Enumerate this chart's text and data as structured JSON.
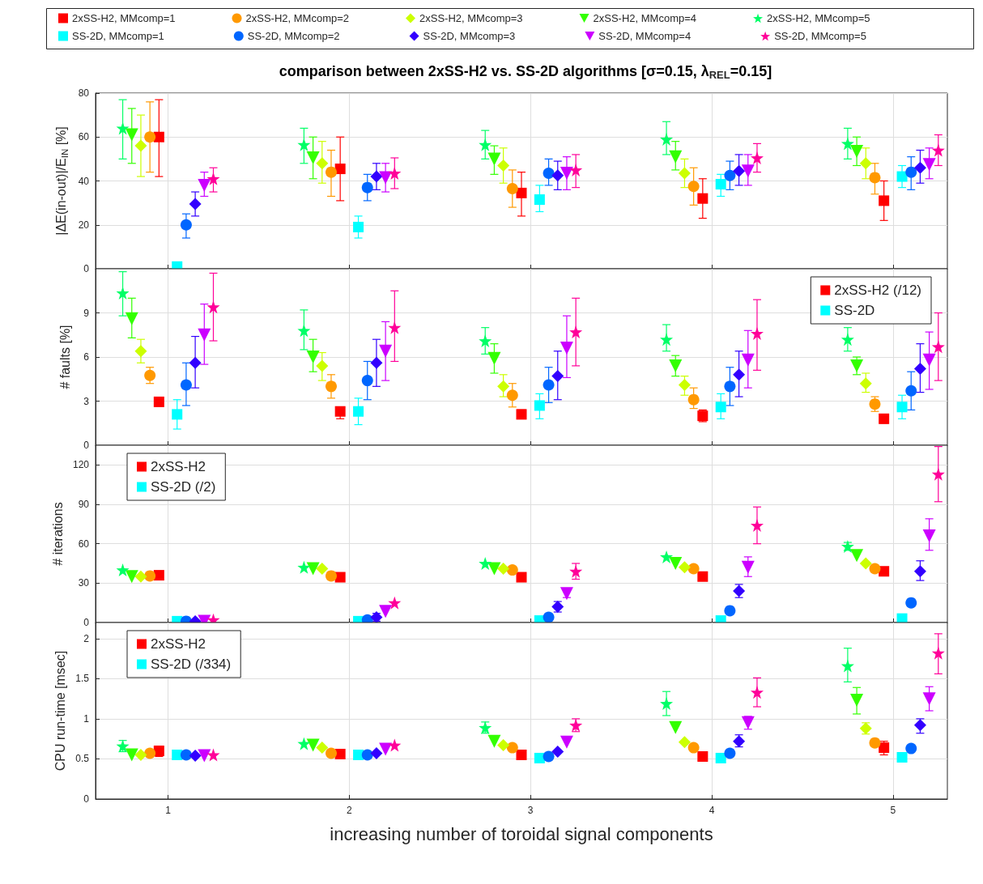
{
  "chart_data": [
    {
      "type": "scatter",
      "title": "comparison between 2xSS-H2 vs. SS-2D algorithms [σ=0.15, λ$_{REL}$=0.15]",
      "ylabel": "|ΔE(in-out)|/E$_{IN}$ [%]",
      "xlim": [
        0.6,
        5.3
      ],
      "xticks": [
        1,
        2,
        3,
        4,
        5
      ],
      "ylim": [
        0,
        80
      ],
      "yticks": [
        0,
        20,
        40,
        60,
        80
      ],
      "grid": true,
      "legend": "top",
      "tick_labels": "y",
      "series": [
        {
          "name": "2xSS-H2, MMcomp=1",
          "color": "#ff0000",
          "marker": "square",
          "x": [
            0.95,
            1.95,
            2.95,
            3.95,
            4.95
          ],
          "values": [
            60,
            45.5,
            34.5,
            32,
            31
          ],
          "errors": [
            [
              42,
              77
            ],
            [
              31,
              60
            ],
            [
              24,
              44
            ],
            [
              23,
              41
            ],
            [
              22,
              40
            ]
          ]
        },
        {
          "name": "2xSS-H2, MMcomp=2",
          "color": "#ff9900",
          "marker": "circle",
          "x": [
            0.9,
            1.9,
            2.9,
            3.9,
            4.9
          ],
          "values": [
            60,
            44,
            36.5,
            37.5,
            41.5
          ],
          "errors": [
            [
              44,
              76
            ],
            [
              33,
              54
            ],
            [
              28,
              45
            ],
            [
              29,
              46
            ],
            [
              34,
              48
            ]
          ]
        },
        {
          "name": "2xSS-H2, MMcomp=3",
          "color": "#ccff00",
          "marker": "diamond",
          "x": [
            0.85,
            1.85,
            2.85,
            3.85,
            4.85
          ],
          "values": [
            56,
            48,
            47,
            43.5,
            48
          ],
          "errors": [
            [
              42,
              70
            ],
            [
              39,
              58
            ],
            [
              39,
              55
            ],
            [
              37,
              50
            ],
            [
              41,
              55
            ]
          ]
        },
        {
          "name": "2xSS-H2, MMcomp=4",
          "color": "#33ff00",
          "marker": "triangle",
          "x": [
            0.8,
            1.8,
            2.8,
            3.8,
            4.8
          ],
          "values": [
            61,
            50.5,
            50,
            51,
            53.5
          ],
          "errors": [
            [
              48,
              73
            ],
            [
              41,
              60
            ],
            [
              43,
              56
            ],
            [
              45,
              58
            ],
            [
              47,
              60
            ]
          ]
        },
        {
          "name": "2xSS-H2, MMcomp=5",
          "color": "#00ff66",
          "marker": "star",
          "x": [
            0.75,
            1.75,
            2.75,
            3.75,
            4.75
          ],
          "values": [
            64,
            56.5,
            56.5,
            59,
            57
          ],
          "errors": [
            [
              50,
              77
            ],
            [
              48,
              64
            ],
            [
              50,
              63
            ],
            [
              52,
              67
            ],
            [
              50,
              64
            ]
          ]
        },
        {
          "name": "SS-2D, MMcomp=1",
          "color": "#00ffff",
          "marker": "square",
          "x": [
            1.05,
            2.05,
            3.05,
            4.05,
            5.05
          ],
          "values": [
            1,
            19,
            31.5,
            38.5,
            42
          ],
          "errors": [
            null,
            [
              14,
              24
            ],
            [
              26,
              38
            ],
            [
              33,
              43
            ],
            [
              37,
              47
            ]
          ]
        },
        {
          "name": "SS-2D, MMcomp=2",
          "color": "#0066ff",
          "marker": "circle",
          "x": [
            1.1,
            2.1,
            3.1,
            4.1,
            5.1
          ],
          "values": [
            20,
            37,
            43.5,
            42.5,
            44
          ],
          "errors": [
            [
              14,
              25
            ],
            [
              31,
              43
            ],
            [
              38,
              50
            ],
            [
              36,
              49
            ],
            [
              36,
              51
            ]
          ]
        },
        {
          "name": "SS-2D, MMcomp=3",
          "color": "#3300ff",
          "marker": "diamond",
          "x": [
            1.15,
            2.15,
            3.15,
            4.15,
            5.15
          ],
          "values": [
            29.5,
            42,
            42.5,
            44.5,
            46
          ],
          "errors": [
            [
              24,
              35
            ],
            [
              36,
              48
            ],
            [
              36,
              49
            ],
            [
              38,
              52
            ],
            [
              39,
              54
            ]
          ]
        },
        {
          "name": "SS-2D, MMcomp=4",
          "color": "#cc00ff",
          "marker": "triangle",
          "x": [
            1.2,
            2.2,
            3.2,
            4.2,
            5.2
          ],
          "values": [
            38,
            41.5,
            43.5,
            44.5,
            47.5
          ],
          "errors": [
            [
              33,
              44
            ],
            [
              35,
              48
            ],
            [
              36,
              51
            ],
            [
              38,
              52
            ],
            [
              41,
              55
            ]
          ]
        },
        {
          "name": "SS-2D, MMcomp=5",
          "color": "#ff0099",
          "marker": "star",
          "x": [
            1.25,
            2.25,
            3.25,
            4.25,
            5.25
          ],
          "values": [
            41,
            43.5,
            45,
            50.5,
            54
          ],
          "errors": [
            [
              35,
              46
            ],
            [
              36.5,
              50.5
            ],
            [
              37,
              52
            ],
            [
              44,
              57
            ],
            [
              47,
              61
            ]
          ]
        }
      ]
    },
    {
      "type": "scatter",
      "ylabel": "# faults [%]",
      "xlim": [
        0.6,
        5.3
      ],
      "xticks": [
        1,
        2,
        3,
        4,
        5
      ],
      "ylim": [
        0,
        12
      ],
      "yticks": [
        0,
        3,
        6,
        9
      ],
      "grid": true,
      "legend": "top right",
      "tick_labels": "y",
      "series": [
        {
          "name": "2xSS-H2 (/12)",
          "color": "#ff0000",
          "marker": "square",
          "x": [
            0.95,
            1.95,
            2.95,
            3.95,
            4.95
          ],
          "values": [
            2.95,
            2.3,
            2.1,
            2.0,
            1.8
          ],
          "errors": [
            null,
            [
              1.8,
              2.6
            ],
            [
              1.8,
              2.4
            ],
            [
              1.6,
              2.4
            ],
            [
              1.5,
              2.1
            ]
          ]
        },
        {
          "color": "#ff9900",
          "marker": "circle",
          "x": [
            0.9,
            1.9,
            2.9,
            3.9,
            4.9
          ],
          "values": [
            4.75,
            4.0,
            3.4,
            3.1,
            2.8
          ],
          "errors": [
            [
              4.2,
              5.3
            ],
            [
              3.2,
              4.8
            ],
            [
              2.6,
              4.2
            ],
            [
              2.5,
              3.9
            ],
            [
              2.3,
              3.3
            ]
          ]
        },
        {
          "color": "#ccff00",
          "marker": "diamond",
          "x": [
            0.85,
            1.85,
            2.85,
            3.85,
            4.85
          ],
          "values": [
            6.4,
            5.4,
            4.0,
            4.1,
            4.2
          ],
          "errors": [
            [
              5.6,
              7.2
            ],
            [
              4.4,
              6.3
            ],
            [
              3.3,
              4.8
            ],
            [
              3.4,
              4.7
            ],
            [
              3.6,
              4.9
            ]
          ]
        },
        {
          "color": "#33ff00",
          "marker": "triangle",
          "x": [
            0.8,
            1.8,
            2.8,
            3.8,
            4.8
          ],
          "values": [
            8.6,
            6.0,
            5.9,
            5.4,
            5.4
          ],
          "errors": [
            [
              7.3,
              10
            ],
            [
              5.0,
              7.2
            ],
            [
              4.9,
              6.9
            ],
            [
              4.7,
              6.1
            ],
            [
              4.8,
              6.0
            ]
          ]
        },
        {
          "color": "#00ff66",
          "marker": "star",
          "x": [
            0.75,
            1.75,
            2.75,
            3.75,
            4.75
          ],
          "values": [
            10.35,
            7.8,
            7.1,
            7.2,
            7.2
          ],
          "errors": [
            [
              8.8,
              11.8
            ],
            [
              6.5,
              9.2
            ],
            [
              6.2,
              8.0
            ],
            [
              6.4,
              8.2
            ],
            [
              6.4,
              8.0
            ]
          ]
        },
        {
          "name": "SS-2D",
          "color": "#00ffff",
          "marker": "square",
          "x": [
            1.05,
            2.05,
            3.05,
            4.05,
            5.05
          ],
          "values": [
            2.1,
            2.3,
            2.7,
            2.6,
            2.6
          ],
          "errors": [
            [
              1.1,
              3.1
            ],
            [
              1.4,
              3.2
            ],
            [
              1.8,
              3.5
            ],
            [
              1.8,
              3.5
            ],
            [
              1.8,
              3.4
            ]
          ]
        },
        {
          "color": "#0066ff",
          "marker": "circle",
          "x": [
            1.1,
            2.1,
            3.1,
            4.1,
            5.1
          ],
          "values": [
            4.1,
            4.4,
            4.1,
            4.0,
            3.7
          ],
          "errors": [
            [
              2.7,
              5.6
            ],
            [
              3.1,
              5.7
            ],
            [
              2.9,
              5.3
            ],
            [
              2.7,
              5.3
            ],
            [
              2.4,
              5.0
            ]
          ]
        },
        {
          "color": "#3300ff",
          "marker": "diamond",
          "x": [
            1.15,
            2.15,
            3.15,
            4.15,
            5.15
          ],
          "values": [
            5.6,
            5.6,
            4.7,
            4.8,
            5.2
          ],
          "errors": [
            [
              3.9,
              7.4
            ],
            [
              4.0,
              7.2
            ],
            [
              3.1,
              6.4
            ],
            [
              3.3,
              6.4
            ],
            [
              3.6,
              6.9
            ]
          ]
        },
        {
          "color": "#cc00ff",
          "marker": "triangle",
          "x": [
            1.2,
            2.2,
            3.2,
            4.2,
            5.2
          ],
          "values": [
            7.5,
            6.4,
            6.6,
            5.8,
            5.8
          ],
          "errors": [
            [
              5.5,
              9.6
            ],
            [
              4.4,
              8.4
            ],
            [
              4.6,
              8.8
            ],
            [
              3.9,
              7.8
            ],
            [
              3.8,
              7.7
            ]
          ]
        },
        {
          "color": "#ff0099",
          "marker": "star",
          "x": [
            1.25,
            2.25,
            3.25,
            4.25,
            5.25
          ],
          "values": [
            9.4,
            8.0,
            7.7,
            7.6,
            6.7
          ],
          "errors": [
            [
              7.1,
              11.7
            ],
            [
              5.7,
              10.5
            ],
            [
              5.4,
              10
            ],
            [
              5.1,
              9.9
            ],
            [
              4.4,
              9.0
            ]
          ]
        }
      ]
    },
    {
      "type": "scatter",
      "ylabel": "# iterations",
      "xlim": [
        0.6,
        5.3
      ],
      "xticks": [
        1,
        2,
        3,
        4,
        5
      ],
      "ylim": [
        0,
        135
      ],
      "yticks": [
        0,
        30,
        60,
        90,
        120
      ],
      "grid": true,
      "legend": "top left",
      "tick_labels": "y",
      "series": [
        {
          "name": "2xSS-H2",
          "color": "#ff0000",
          "marker": "square",
          "x": [
            0.95,
            1.95,
            2.95,
            3.95,
            4.95
          ],
          "values": [
            36,
            34.5,
            34.5,
            35,
            39
          ]
        },
        {
          "color": "#ff9900",
          "marker": "circle",
          "x": [
            0.9,
            1.9,
            2.9,
            3.9,
            4.9
          ],
          "values": [
            35.5,
            35.5,
            40,
            41,
            41
          ]
        },
        {
          "color": "#ccff00",
          "marker": "diamond",
          "x": [
            0.85,
            1.85,
            2.85,
            3.85,
            4.85
          ],
          "values": [
            35,
            41,
            41,
            42,
            45
          ]
        },
        {
          "color": "#33ff00",
          "marker": "triangle",
          "x": [
            0.8,
            1.8,
            2.8,
            3.8,
            4.8
          ],
          "values": [
            35,
            41,
            41,
            45,
            51
          ]
        },
        {
          "color": "#00ff66",
          "marker": "star",
          "x": [
            0.75,
            1.75,
            2.75,
            3.75,
            4.75
          ],
          "values": [
            40,
            42,
            45,
            50,
            58
          ],
          "errors": [
            null,
            null,
            null,
            null,
            [
              55,
              61
            ]
          ]
        },
        {
          "name": "SS-2D (/2)",
          "color": "#00ffff",
          "marker": "square",
          "x": [
            1.05,
            2.05,
            3.05,
            4.05,
            5.05
          ],
          "values": [
            1,
            1,
            1.5,
            1.5,
            3
          ]
        },
        {
          "color": "#0066ff",
          "marker": "circle",
          "x": [
            1.1,
            2.1,
            3.1,
            4.1,
            5.1
          ],
          "values": [
            1,
            2,
            4,
            9,
            15
          ]
        },
        {
          "color": "#3300ff",
          "marker": "diamond",
          "x": [
            1.15,
            2.15,
            3.15,
            4.15,
            5.15
          ],
          "values": [
            1,
            4,
            12,
            24,
            39
          ],
          "errors": [
            null,
            [
              1,
              7
            ],
            [
              8,
              16
            ],
            [
              19,
              29
            ],
            [
              32,
              47
            ]
          ]
        },
        {
          "color": "#cc00ff",
          "marker": "triangle",
          "x": [
            1.2,
            2.2,
            3.2,
            4.2,
            5.2
          ],
          "values": [
            1,
            8.5,
            22,
            42,
            66
          ],
          "errors": [
            null,
            null,
            [
              19,
              26
            ],
            [
              35,
              50
            ],
            [
              55,
              79
            ]
          ]
        },
        {
          "color": "#ff0099",
          "marker": "star",
          "x": [
            1.25,
            2.25,
            3.25,
            4.25,
            5.25
          ],
          "values": [
            2,
            15,
            39,
            74,
            113
          ],
          "errors": [
            null,
            null,
            [
              33,
              45
            ],
            [
              60,
              88
            ],
            [
              92,
              134
            ]
          ]
        }
      ]
    },
    {
      "type": "scatter",
      "ylabel": "CPU run-time [msec]",
      "xlabel": "increasing number of toroidal signal components",
      "xlim": [
        0.6,
        5.3
      ],
      "xticks": [
        1,
        2,
        3,
        4,
        5
      ],
      "ylim": [
        0,
        2.2
      ],
      "yticks": [
        0,
        0.5,
        1,
        1.5,
        2
      ],
      "grid": true,
      "legend": "top left",
      "series": [
        {
          "name": "2xSS-H2",
          "color": "#ff0000",
          "marker": "square",
          "x": [
            0.95,
            1.95,
            2.95,
            3.95,
            4.95
          ],
          "values": [
            0.6,
            0.56,
            0.55,
            0.53,
            0.64
          ],
          "errors": [
            [
              0.53,
              0.66
            ],
            null,
            null,
            null,
            [
              0.55,
              0.72
            ]
          ]
        },
        {
          "color": "#ff9900",
          "marker": "circle",
          "x": [
            0.9,
            1.9,
            2.9,
            3.9,
            4.9
          ],
          "values": [
            0.57,
            0.57,
            0.64,
            0.64,
            0.7
          ]
        },
        {
          "color": "#ccff00",
          "marker": "diamond",
          "x": [
            0.85,
            1.85,
            2.85,
            3.85,
            4.85
          ],
          "values": [
            0.55,
            0.64,
            0.67,
            0.71,
            0.88
          ],
          "errors": [
            null,
            null,
            null,
            null,
            [
              0.81,
              0.95
            ]
          ]
        },
        {
          "color": "#33ff00",
          "marker": "triangle",
          "x": [
            0.8,
            1.8,
            2.8,
            3.8,
            4.8
          ],
          "values": [
            0.55,
            0.67,
            0.72,
            0.89,
            1.23
          ],
          "errors": [
            null,
            null,
            null,
            null,
            [
              1.06,
              1.39
            ]
          ]
        },
        {
          "color": "#00ff66",
          "marker": "star",
          "x": [
            0.75,
            1.75,
            2.75,
            3.75,
            4.75
          ],
          "values": [
            0.66,
            0.69,
            0.89,
            1.19,
            1.66
          ],
          "errors": [
            [
              0.59,
              0.73
            ],
            null,
            [
              0.82,
              0.96
            ],
            [
              1.04,
              1.34
            ],
            [
              1.46,
              1.88
            ]
          ]
        },
        {
          "name": "SS-2D (/334)",
          "color": "#00ffff",
          "marker": "square",
          "x": [
            1.05,
            2.05,
            3.05,
            4.05,
            5.05
          ],
          "values": [
            0.55,
            0.55,
            0.51,
            0.51,
            0.52
          ]
        },
        {
          "color": "#0066ff",
          "marker": "circle",
          "x": [
            1.1,
            2.1,
            3.1,
            4.1,
            5.1
          ],
          "values": [
            0.55,
            0.55,
            0.53,
            0.57,
            0.63
          ]
        },
        {
          "color": "#3300ff",
          "marker": "diamond",
          "x": [
            1.15,
            2.15,
            3.15,
            4.15,
            5.15
          ],
          "values": [
            0.54,
            0.57,
            0.59,
            0.72,
            0.92
          ],
          "errors": [
            null,
            null,
            null,
            [
              0.65,
              0.8
            ],
            [
              0.82,
              1.0
            ]
          ]
        },
        {
          "color": "#cc00ff",
          "marker": "triangle",
          "x": [
            1.2,
            2.2,
            3.2,
            4.2,
            5.2
          ],
          "values": [
            0.54,
            0.62,
            0.71,
            0.95,
            1.25
          ],
          "errors": [
            null,
            null,
            null,
            [
              0.87,
              1.03
            ],
            [
              1.1,
              1.4
            ]
          ]
        },
        {
          "color": "#ff0099",
          "marker": "star",
          "x": [
            1.25,
            2.25,
            3.25,
            4.25,
            5.25
          ],
          "values": [
            0.55,
            0.67,
            0.92,
            1.33,
            1.82
          ],
          "errors": [
            null,
            null,
            [
              0.84,
              1.0
            ],
            [
              1.15,
              1.51
            ],
            [
              1.56,
              2.06
            ]
          ]
        }
      ]
    }
  ]
}
